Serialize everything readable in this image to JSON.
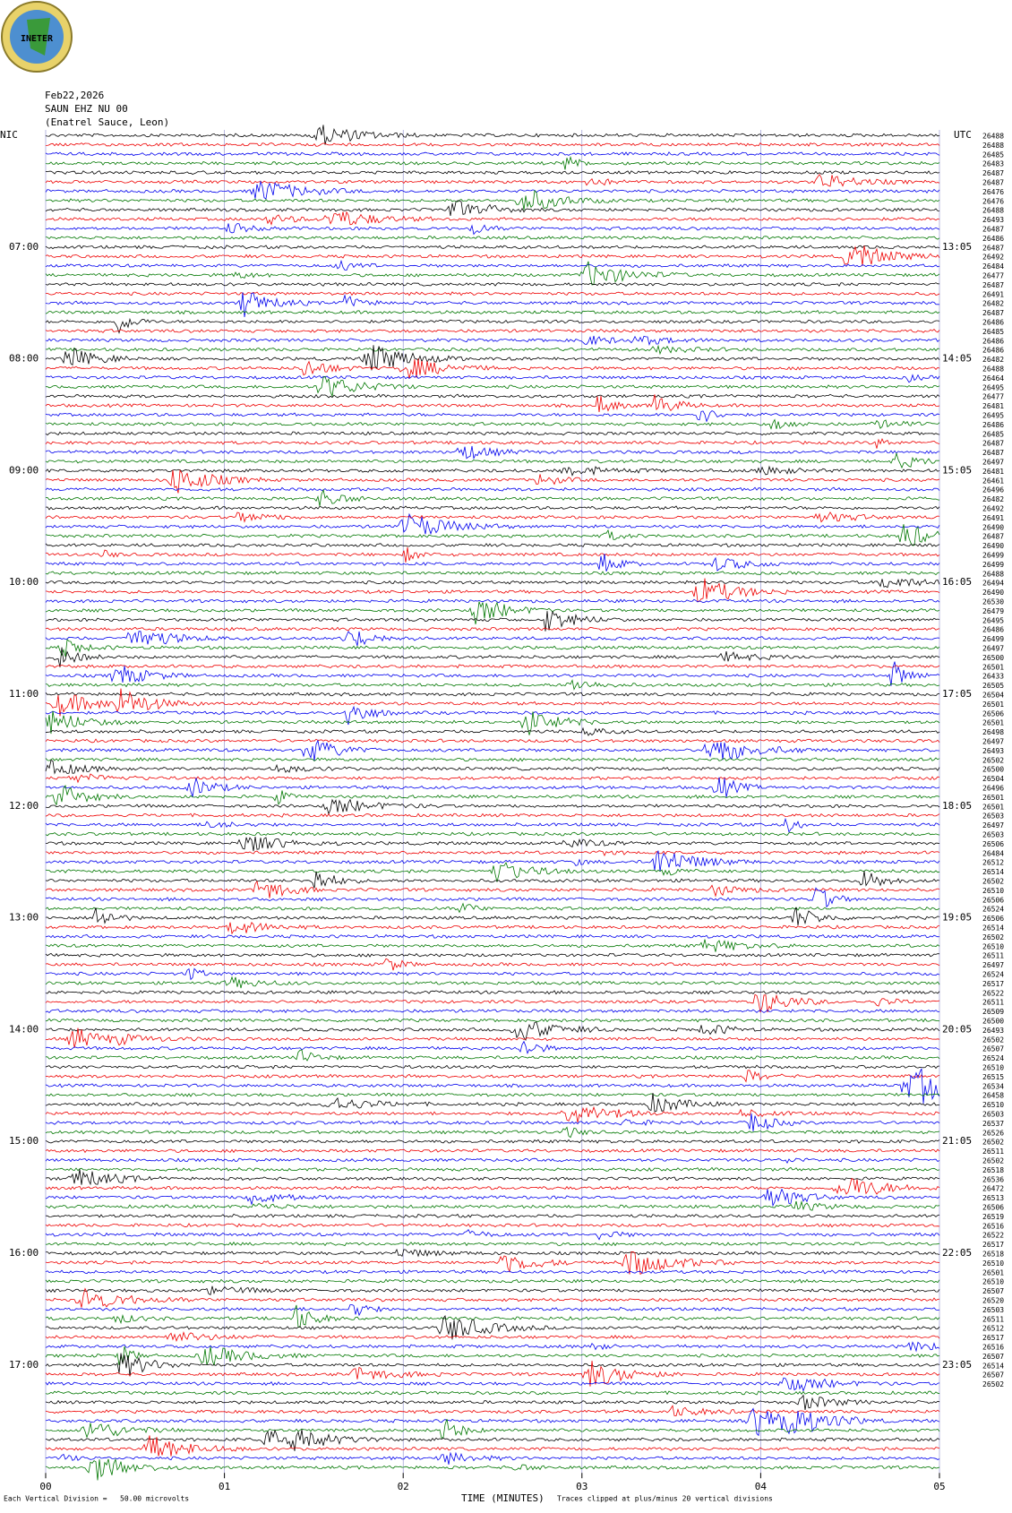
{
  "header": {
    "logo": "INETER",
    "date": "Feb22,2026",
    "station": "SAUN EHZ NU 00",
    "site": "(Enatrel Sauce, Leon)",
    "left_zone": "NIC",
    "right_zone": "UTC"
  },
  "left_labels": [
    "07:00",
    "08:00",
    "09:00",
    "10:00",
    "11:00",
    "12:00",
    "13:00",
    "14:00",
    "15:00",
    "16:00",
    "17:00"
  ],
  "right_labels": [
    "13:05",
    "14:05",
    "15:05",
    "16:05",
    "17:05",
    "18:05",
    "19:05",
    "20:05",
    "21:05",
    "22:05",
    "23:05"
  ],
  "row_numbers": [
    "26488",
    "26488",
    "26485",
    "26483",
    "26487",
    "26487",
    "26476",
    "26476",
    "26488",
    "26493",
    "26487",
    "26486",
    "26487",
    "26492",
    "26484",
    "26477",
    "26487",
    "26491",
    "26482",
    "26487",
    "26486",
    "26485",
    "26486",
    "26486",
    "26482",
    "26488",
    "26464",
    "26495",
    "26477",
    "26481",
    "26495",
    "26486",
    "26485",
    "26487",
    "26487",
    "26497",
    "26481",
    "26461",
    "26496",
    "26482",
    "26492",
    "26491",
    "26490",
    "26487",
    "26490",
    "26499",
    "26499",
    "26488",
    "26494",
    "26490",
    "26530",
    "26479",
    "26495",
    "26486",
    "26499",
    "26497",
    "26500",
    "26501",
    "26433",
    "26505",
    "26504",
    "26501",
    "26506",
    "26501",
    "26498",
    "26497",
    "26493",
    "26502",
    "26500",
    "26504",
    "26496",
    "26501",
    "26501",
    "26503",
    "26497",
    "26503",
    "26506",
    "26484",
    "26512",
    "26514",
    "26502",
    "26510",
    "26506",
    "26524",
    "26506",
    "26514",
    "26502",
    "26510",
    "26511",
    "26497",
    "26524",
    "26517",
    "26522",
    "26511",
    "26509",
    "26500",
    "26493",
    "26502",
    "26507",
    "26524",
    "26510",
    "26515",
    "26534",
    "26458",
    "26510",
    "26503",
    "26537",
    "26526",
    "26502",
    "26511",
    "26502",
    "26518",
    "26536",
    "26472",
    "26513",
    "26506",
    "26519",
    "26516",
    "26522",
    "26517",
    "26518",
    "26510",
    "26501",
    "26510",
    "26507",
    "26520",
    "26503",
    "26511",
    "26512",
    "26517",
    "26516",
    "26507",
    "26514",
    "26507",
    "26502"
  ],
  "x_ticks": [
    "00",
    "01",
    "02",
    "03",
    "04",
    "05"
  ],
  "footer": {
    "scale": "Each Vertical Division =   50.00 microvolts",
    "axis_title": "TIME (MINUTES)",
    "clip_note": "Traces clipped at plus/minus 20 vertical divisions"
  }
}
